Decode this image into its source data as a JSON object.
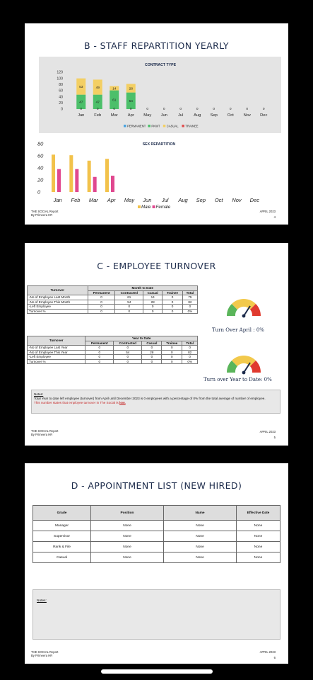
{
  "footer": {
    "company": "THE SOCIAL Report",
    "by": "By Primeera HR",
    "date": "APRIL 2023"
  },
  "page1": {
    "title": "B - STAFF REPARTITION YEARLY",
    "page_no": "4",
    "contract_chart_title": "CONTRACT TYPE",
    "sex_chart_title": "SEX REPARTITION"
  },
  "chart_data": [
    {
      "type": "bar",
      "title": "CONTRACT TYPE",
      "categories": [
        "Jan",
        "Feb",
        "Mar",
        "Apr",
        "May",
        "Jun",
        "Jul",
        "Aug",
        "Sep",
        "Oct",
        "Nov",
        "Dec"
      ],
      "stacked": true,
      "ylim": [
        0,
        120
      ],
      "yticks": [
        0,
        20,
        40,
        60,
        80,
        100,
        120
      ],
      "legend_position": "bottom",
      "series": [
        {
          "name": "PERMANENT",
          "color": "#4aa3e0",
          "values": [
            0,
            0,
            0,
            0,
            0,
            0,
            0,
            0,
            0,
            0,
            0,
            0
          ]
        },
        {
          "name": "PKWT",
          "color": "#4cbf6a",
          "values": [
            47,
            47,
            61,
            54,
            0,
            0,
            0,
            0,
            0,
            0,
            0,
            0
          ]
        },
        {
          "name": "CASUAL",
          "color": "#f3cf63",
          "values": [
            53,
            49,
            14,
            28,
            0,
            0,
            0,
            0,
            0,
            0,
            0,
            0
          ]
        },
        {
          "name": "TRAINEE",
          "color": "#e05050",
          "values": [
            0,
            0,
            0,
            0,
            0,
            0,
            0,
            0,
            0,
            0,
            0,
            0
          ]
        }
      ]
    },
    {
      "type": "bar",
      "title": "SEX REPARTITION",
      "categories": [
        "Jan",
        "Feb",
        "Mar",
        "Apr",
        "May",
        "Jun",
        "Jul",
        "Aug",
        "Sep",
        "Oct",
        "Nov",
        "Dec"
      ],
      "ylim": [
        0,
        80
      ],
      "yticks": [
        0,
        20,
        40,
        60,
        80
      ],
      "legend_position": "bottom",
      "series": [
        {
          "name": "Male",
          "color": "#f2c24b",
          "values": [
            62,
            61,
            52,
            55,
            0,
            0,
            0,
            0,
            0,
            0,
            0,
            0
          ]
        },
        {
          "name": "Female",
          "color": "#e0488f",
          "values": [
            38,
            38,
            25,
            27,
            0,
            0,
            0,
            0,
            0,
            0,
            0,
            0
          ]
        }
      ]
    }
  ],
  "page2": {
    "title": "C - EMPLOYEE TURNOVER",
    "page_no": "5",
    "mtd": {
      "section": "Month to Date",
      "headers": [
        "Turnover",
        "Permanent",
        "Contracted",
        "Casual",
        "Trainee",
        "Total"
      ],
      "rows": [
        [
          "-No of Employee Last Month",
          "0",
          "61",
          "14",
          "0",
          "75"
        ],
        [
          "-No of Employee This Month",
          "0",
          "54",
          "28",
          "0",
          "82"
        ],
        [
          "-Left Employee",
          "0",
          "0",
          "0",
          "0",
          "0"
        ],
        [
          "Turnover %",
          "0",
          "0",
          "0",
          "0",
          "0%"
        ]
      ]
    },
    "ytd": {
      "section": "Year to Date",
      "headers": [
        "Turnover",
        "Permanent",
        "Contracted",
        "Casual",
        "Trainee",
        "Total"
      ],
      "rows": [
        [
          "-No of Employee Last Year",
          "0",
          "0",
          "0",
          "0",
          "0"
        ],
        [
          "-No of Employee This Year",
          "0",
          "54",
          "28",
          "0",
          "82"
        ],
        [
          "-Left Employee",
          "0",
          "0",
          "0",
          "0",
          "0"
        ],
        [
          "Turnover %",
          "0",
          "0",
          "0",
          "0",
          "0%"
        ]
      ]
    },
    "gauge1_caption": "Turn Over April : 0%",
    "gauge2_caption": "Turn over Year to Date: 0%",
    "gauge1_value": 0,
    "gauge2_value": 0,
    "notes_label": "Notes:",
    "notes_line1": "Total Year to date left employee (turnover) from April until December 2023 is 0 employees with a percentage of 0% from the total average of number of employee.",
    "notes_line2_prefix": "This number states that employee turnover in The Social is ",
    "notes_line2_emph": "low."
  },
  "page3": {
    "title": "D - APPOINTMENT LIST (NEW HIRED)",
    "page_no": "6",
    "headers": [
      "Grade",
      "Position",
      "Name",
      "Effective Date"
    ],
    "rows": [
      [
        "Manager",
        "None",
        "None",
        "None"
      ],
      [
        "Supervisor",
        "None",
        "None",
        "None"
      ],
      [
        "Rank & File",
        "None",
        "None",
        "None"
      ],
      [
        "Casual",
        "None",
        "None",
        "None"
      ]
    ],
    "notes_label": "Notes:"
  }
}
